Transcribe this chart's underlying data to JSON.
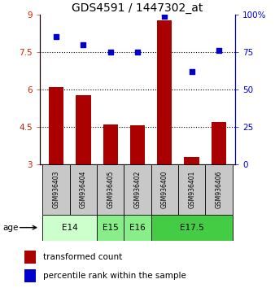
{
  "title": "GDS4591 / 1447302_at",
  "samples": [
    "GSM936403",
    "GSM936404",
    "GSM936405",
    "GSM936402",
    "GSM936400",
    "GSM936401",
    "GSM936406"
  ],
  "bar_values": [
    6.1,
    5.75,
    4.6,
    4.55,
    8.75,
    3.3,
    4.7
  ],
  "scatter_values": [
    85,
    80,
    75,
    75,
    99,
    62,
    76
  ],
  "bar_color": "#aa0000",
  "scatter_color": "#0000cc",
  "ylim_left": [
    3,
    9
  ],
  "ylim_right": [
    0,
    100
  ],
  "yticks_left": [
    3,
    4.5,
    6,
    7.5,
    9
  ],
  "yticks_right": [
    0,
    25,
    50,
    75,
    100
  ],
  "ytick_labels_left": [
    "3",
    "4.5",
    "6",
    "7.5",
    "9"
  ],
  "ytick_labels_right": [
    "0",
    "25",
    "50",
    "75",
    "100%"
  ],
  "hlines": [
    4.5,
    6.0,
    7.5
  ],
  "age_groups": [
    {
      "label": "E14",
      "start": 0,
      "end": 2,
      "color": "#ccffcc"
    },
    {
      "label": "E15",
      "start": 2,
      "end": 3,
      "color": "#88ee88"
    },
    {
      "label": "E16",
      "start": 3,
      "end": 4,
      "color": "#88ee88"
    },
    {
      "label": "E17.5",
      "start": 4,
      "end": 7,
      "color": "#44cc44"
    }
  ],
  "legend_bar_label": "transformed count",
  "legend_scatter_label": "percentile rank within the sample",
  "age_label": "age",
  "sample_bg_color": "#c8c8c8",
  "title_fontsize": 10,
  "tick_fontsize": 7.5,
  "sample_fontsize": 5.5,
  "age_fontsize": 7.5,
  "legend_fontsize": 7.5
}
